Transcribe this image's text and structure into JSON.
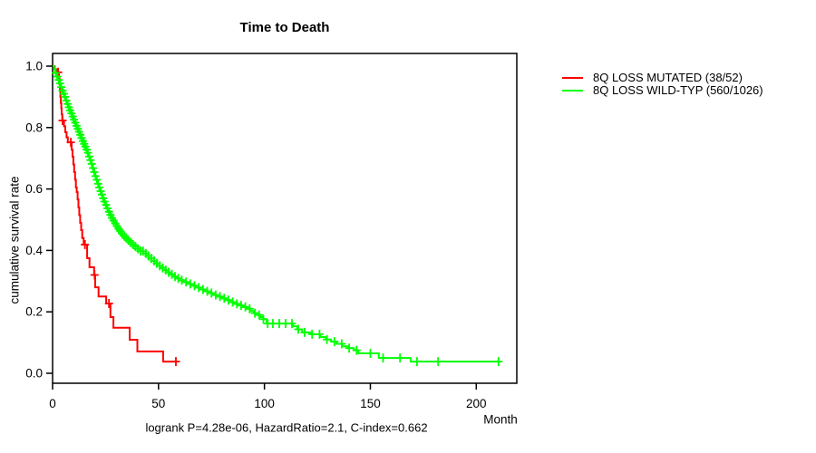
{
  "title": "Time to Death",
  "axes": {
    "y_label": "cumulative survival rate",
    "x_label": "Month"
  },
  "legend": {
    "items": [
      {
        "label": "8Q LOSS MUTATED (38/52)",
        "color": "#ff0000"
      },
      {
        "label": "8Q LOSS WILD-TYP (560/1026)",
        "color": "#00ff00"
      }
    ]
  },
  "footer": "logrank P=4.28e-06, HazardRatio=2.1, C-index=0.662",
  "stats": {
    "logrank_p": "4.28e-06",
    "hazard_ratio": "2.1",
    "c_index": "0.662"
  },
  "chart_data": {
    "type": "line",
    "subtype": "kaplan-meier-step",
    "title": "Time to Death",
    "xlabel": "Month",
    "ylabel": "cumulative survival rate",
    "xlim": [
      0,
      219
    ],
    "ylim": [
      0,
      1
    ],
    "grid": false,
    "legend_position": "right-outside",
    "x_ticks": [
      0,
      50,
      100,
      150,
      200
    ],
    "x_tick_labels": [
      "0",
      "50",
      "100",
      "150",
      "200"
    ],
    "y_ticks": [
      0.0,
      0.2,
      0.4,
      0.6,
      0.8,
      1.0
    ],
    "y_tick_labels": [
      "0.0",
      "0.2",
      "0.4",
      "0.6",
      "0.8",
      "1.0"
    ],
    "series": [
      {
        "name": "8Q LOSS MUTATED (38/52)",
        "color": "#ff0000",
        "end_month": 59,
        "points": [
          [
            0,
            1.0
          ],
          [
            1,
            0.99
          ],
          [
            2,
            0.98
          ],
          [
            3,
            0.96
          ],
          [
            3.3,
            0.94
          ],
          [
            3.5,
            0.92
          ],
          [
            3.7,
            0.9
          ],
          [
            3.9,
            0.88
          ],
          [
            4.1,
            0.862
          ],
          [
            4.3,
            0.843
          ],
          [
            4.6,
            0.823
          ],
          [
            5.4,
            0.804
          ],
          [
            6,
            0.785
          ],
          [
            6.6,
            0.768
          ],
          [
            7.2,
            0.752
          ],
          [
            9,
            0.728
          ],
          [
            9.4,
            0.705
          ],
          [
            9.8,
            0.68
          ],
          [
            10.2,
            0.655
          ],
          [
            10.6,
            0.63
          ],
          [
            11,
            0.605
          ],
          [
            11.4,
            0.59
          ],
          [
            11.8,
            0.566
          ],
          [
            12.2,
            0.54
          ],
          [
            12.6,
            0.515
          ],
          [
            13,
            0.49
          ],
          [
            13.5,
            0.466
          ],
          [
            14,
            0.44
          ],
          [
            14.7,
            0.419
          ],
          [
            16.3,
            0.375
          ],
          [
            17.4,
            0.345
          ],
          [
            19.6,
            0.32
          ],
          [
            20.1,
            0.28
          ],
          [
            21.7,
            0.25
          ],
          [
            25.3,
            0.227
          ],
          [
            27.3,
            0.183
          ],
          [
            28.7,
            0.148
          ],
          [
            36.4,
            0.109
          ],
          [
            40,
            0.071
          ],
          [
            52.2,
            0.038
          ]
        ],
        "censor_months": [
          2.6,
          4.7,
          8.6,
          15.3,
          19.8,
          26.6,
          58.2
        ]
      },
      {
        "name": "8Q LOSS WILD-TYP (560/1026)",
        "color": "#00ff00",
        "end_month": 211,
        "points": [
          [
            0,
            1.0
          ],
          [
            0.7,
            0.99
          ],
          [
            1.2,
            0.978
          ],
          [
            1.8,
            0.966
          ],
          [
            2.4,
            0.955
          ],
          [
            3,
            0.944
          ],
          [
            3.6,
            0.932
          ],
          [
            4.2,
            0.92
          ],
          [
            4.8,
            0.91
          ],
          [
            5.4,
            0.9
          ],
          [
            6,
            0.888
          ],
          [
            6.6,
            0.877
          ],
          [
            7.2,
            0.866
          ],
          [
            7.8,
            0.856
          ],
          [
            8.4,
            0.846
          ],
          [
            9,
            0.836
          ],
          [
            9.6,
            0.826
          ],
          [
            10.2,
            0.816
          ],
          [
            10.8,
            0.806
          ],
          [
            11.4,
            0.796
          ],
          [
            12,
            0.786
          ],
          [
            12.6,
            0.776
          ],
          [
            13.2,
            0.766
          ],
          [
            13.8,
            0.756
          ],
          [
            14.4,
            0.747
          ],
          [
            15,
            0.738
          ],
          [
            15.6,
            0.728
          ],
          [
            16.2,
            0.718
          ],
          [
            16.8,
            0.706
          ],
          [
            17.4,
            0.694
          ],
          [
            18,
            0.682
          ],
          [
            18.6,
            0.668
          ],
          [
            19.2,
            0.655
          ],
          [
            19.8,
            0.642
          ],
          [
            20.4,
            0.63
          ],
          [
            21,
            0.617
          ],
          [
            21.6,
            0.605
          ],
          [
            22.2,
            0.593
          ],
          [
            22.8,
            0.582
          ],
          [
            23.4,
            0.57
          ],
          [
            24,
            0.559
          ],
          [
            24.7,
            0.548
          ],
          [
            25.4,
            0.537
          ],
          [
            26.1,
            0.526
          ],
          [
            26.8,
            0.516
          ],
          [
            27.5,
            0.506
          ],
          [
            28.2,
            0.497
          ],
          [
            29,
            0.488
          ],
          [
            29.8,
            0.479
          ],
          [
            30.6,
            0.47
          ],
          [
            31.5,
            0.462
          ],
          [
            32.4,
            0.454
          ],
          [
            33.4,
            0.447
          ],
          [
            34.4,
            0.44
          ],
          [
            35.5,
            0.433
          ],
          [
            36.6,
            0.426
          ],
          [
            37.8,
            0.419
          ],
          [
            39,
            0.412
          ],
          [
            40.2,
            0.405
          ],
          [
            41.5,
            0.398
          ],
          [
            42.8,
            0.39
          ],
          [
            44.1,
            0.382
          ],
          [
            45.4,
            0.374
          ],
          [
            46.7,
            0.366
          ],
          [
            48,
            0.358
          ],
          [
            49.4,
            0.35
          ],
          [
            50.8,
            0.343
          ],
          [
            52.2,
            0.336
          ],
          [
            53.6,
            0.329
          ],
          [
            55,
            0.322
          ],
          [
            56.5,
            0.315
          ],
          [
            58,
            0.309
          ],
          [
            59.5,
            0.303
          ],
          [
            61.5,
            0.297
          ],
          [
            63.5,
            0.291
          ],
          [
            65.5,
            0.285
          ],
          [
            67.5,
            0.279
          ],
          [
            69.5,
            0.273
          ],
          [
            71.5,
            0.267
          ],
          [
            73.5,
            0.261
          ],
          [
            75.5,
            0.255
          ],
          [
            77.5,
            0.25
          ],
          [
            79.5,
            0.244
          ],
          [
            81.5,
            0.238
          ],
          [
            83.5,
            0.232
          ],
          [
            85.5,
            0.226
          ],
          [
            87.5,
            0.221
          ],
          [
            89.5,
            0.216
          ],
          [
            91.5,
            0.21
          ],
          [
            93.5,
            0.203
          ],
          [
            95,
            0.196
          ],
          [
            96.5,
            0.19
          ],
          [
            98,
            0.183
          ],
          [
            99.5,
            0.176
          ],
          [
            101,
            0.168
          ],
          [
            101.5,
            0.162
          ],
          [
            113.5,
            0.153
          ],
          [
            115.5,
            0.143
          ],
          [
            117.8,
            0.133
          ],
          [
            122,
            0.127
          ],
          [
            126.3,
            0.118
          ],
          [
            129,
            0.11
          ],
          [
            131.5,
            0.103
          ],
          [
            134,
            0.096
          ],
          [
            136.6,
            0.088
          ],
          [
            139.5,
            0.082
          ],
          [
            142.2,
            0.075
          ],
          [
            144.3,
            0.065
          ],
          [
            154,
            0.05
          ],
          [
            169,
            0.038
          ]
        ],
        "censor_months": [
          1.5,
          2.2,
          2.9,
          3.5,
          4.1,
          4.7,
          5.3,
          5.9,
          6.5,
          7.1,
          7.7,
          8.3,
          8.9,
          9.5,
          10.1,
          10.7,
          11.3,
          11.9,
          12.5,
          13.1,
          13.7,
          14.3,
          14.9,
          15.5,
          16.1,
          16.7,
          17.3,
          17.9,
          18.5,
          19.1,
          19.7,
          20.3,
          20.9,
          21.5,
          22.1,
          22.7,
          23.3,
          23.9,
          24.5,
          25.2,
          25.9,
          26.6,
          27.3,
          28,
          28.8,
          29.6,
          30.4,
          31.2,
          32,
          32.9,
          33.8,
          34.8,
          35.8,
          36.9,
          38,
          39.1,
          40.3,
          41.5,
          42.7,
          44,
          45.3,
          46.6,
          47.9,
          49.2,
          50.6,
          52,
          53.4,
          54.8,
          56.3,
          57.8,
          59.3,
          61,
          63,
          65,
          67,
          69,
          71,
          73,
          75,
          77,
          79,
          81,
          83,
          85,
          87,
          89,
          91,
          93,
          95.5,
          97.5,
          99.5,
          101.5,
          104,
          107,
          110,
          113,
          116,
          119,
          122.5,
          126,
          129.5,
          133,
          136.5,
          140,
          143.5,
          150,
          156,
          164,
          172,
          182,
          210.5
        ]
      }
    ]
  }
}
